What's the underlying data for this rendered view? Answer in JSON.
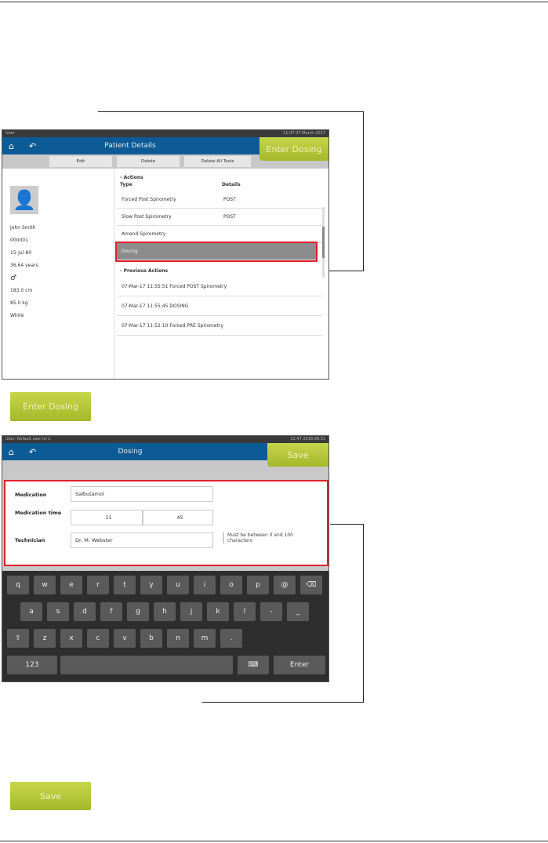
{
  "screen1": {
    "status_left": "User",
    "status_right": "11:07 07-March-2017",
    "title": "Patient Details",
    "enter_dosing": "Enter Dosing",
    "toolbar": [
      "Edit",
      "Delete",
      "Delete All Tests"
    ],
    "patient": {
      "name": "John Smith",
      "id": "000001",
      "dob": "15-Jul-80",
      "age": "36.64 years",
      "height": "183.0 cm",
      "weight": "85.0 kg",
      "ethnicity": "White"
    },
    "actions_heading": "Actions",
    "col_type": "Type",
    "col_details": "Details",
    "actions": [
      {
        "type": "Forced Post Spirometry",
        "details": "POST"
      },
      {
        "type": "Slow Post Spirometry",
        "details": "POST"
      },
      {
        "type": "Amend Spirometry",
        "details": ""
      },
      {
        "type": "Dosing",
        "details": ""
      }
    ],
    "previous_heading": "Previous Actions",
    "previous": [
      "07-Mar-17 11:55:51 Forced POST Spirometry",
      "07-Mar-17 11:55:45 DOSING",
      "07-Mar-17 11:52:10 Forced PRE Spirometry"
    ]
  },
  "enter_dosing_button": "Enter Dosing",
  "screen2": {
    "status_left": "User: Default user lvl 2",
    "status_right": "11:47 2018.08.31",
    "title": "Dosing",
    "save": "Save",
    "medication_label": "Medication",
    "medication_value": "Salbutamol",
    "time_label": "Medication time",
    "time_hour": "11",
    "time_minute": "45",
    "technician_label": "Technician",
    "technician_value": "Dr. M. Webster",
    "hint": "Must be between 0 and 100 characters",
    "keys_row1": [
      "q",
      "w",
      "e",
      "r",
      "t",
      "y",
      "u",
      "i",
      "o",
      "p",
      "@",
      "⌫"
    ],
    "keys_row2": [
      "a",
      "s",
      "d",
      "f",
      "g",
      "h",
      "j",
      "k",
      "l",
      "-",
      "_"
    ],
    "keys_row3": [
      "⇧",
      "z",
      "x",
      "c",
      "v",
      "b",
      "n",
      "m",
      "."
    ],
    "key_123": "123",
    "key_enter": "Enter",
    "key_hide": "⌨"
  },
  "save_button": "Save",
  "highlight_color": "#e0202a"
}
